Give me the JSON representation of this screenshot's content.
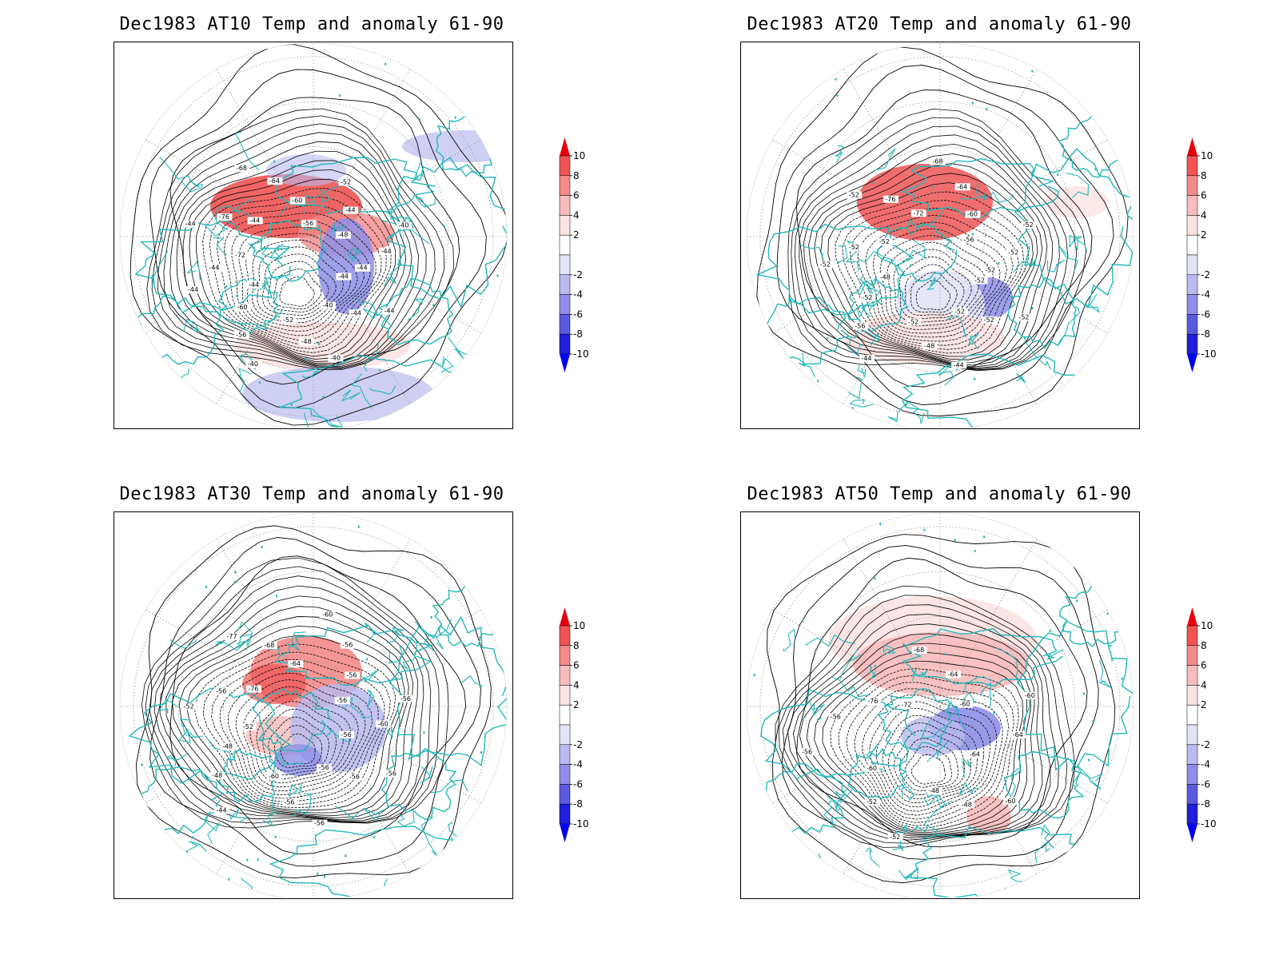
{
  "panels": [
    {
      "title": "Dec1983 AT10 Temp and anomaly 61-90",
      "contour_labels": [
        "-44",
        "-44",
        "-44",
        "-40",
        "-40",
        "-48",
        "-52",
        "-40",
        "-56",
        "-60",
        "-44",
        "-44",
        "-44",
        "-72",
        "-44",
        "-76",
        "-44",
        "-68",
        "-64",
        "-60",
        "-56",
        "-52",
        "-44",
        "-48",
        "-40",
        "-44",
        "-44"
      ]
    },
    {
      "title": "Dec1983 AT20 Temp and anomaly 61-90",
      "contour_labels": [
        "-52",
        "-52",
        "-52",
        "-52",
        "-44",
        "-48",
        "-52",
        "-44",
        "-56",
        "-52",
        "-48",
        "-52",
        "-52",
        "-52",
        "-52",
        "-76",
        "-72",
        "-68",
        "-64",
        "-60",
        "-56",
        "-52",
        "-52",
        "-52"
      ]
    },
    {
      "title": "Dec1983 AT30 Temp and anomaly 61-90",
      "contour_labels": [
        "-56",
        "-56",
        "-56",
        "-56",
        "-56",
        "-56",
        "-60",
        "-44",
        "-48",
        "-48",
        "-52",
        "-52",
        "-56",
        "-76",
        "-77",
        "-68",
        "-64",
        "-60",
        "-56",
        "-56",
        "-56",
        "-56",
        "-60"
      ]
    },
    {
      "title": "Dec1983 AT50 Temp and anomaly 61-90",
      "contour_labels": [
        "-64",
        "-60",
        "-48",
        "-48",
        "-52",
        "-52",
        "-60",
        "-56",
        "-56",
        "-76",
        "-72",
        "-68",
        "-64",
        "-60",
        "-60",
        "-64"
      ]
    }
  ],
  "colorbar": {
    "ticks": [
      "10",
      "8",
      "6",
      "4",
      "2",
      "-2",
      "-4",
      "-6",
      "-8",
      "-10"
    ],
    "colors": [
      "#e8000c",
      "#f05353",
      "#f48a8a",
      "#f8bcbc",
      "#fbe2e2",
      "#ffffff",
      "#e3e3f8",
      "#babaf0",
      "#8e8ee8",
      "#5a5adf",
      "#1e1edc",
      "#0000ee"
    ]
  },
  "colors": {
    "coast": "#22b8b8",
    "contour": "#000000",
    "frame": "#000000"
  }
}
